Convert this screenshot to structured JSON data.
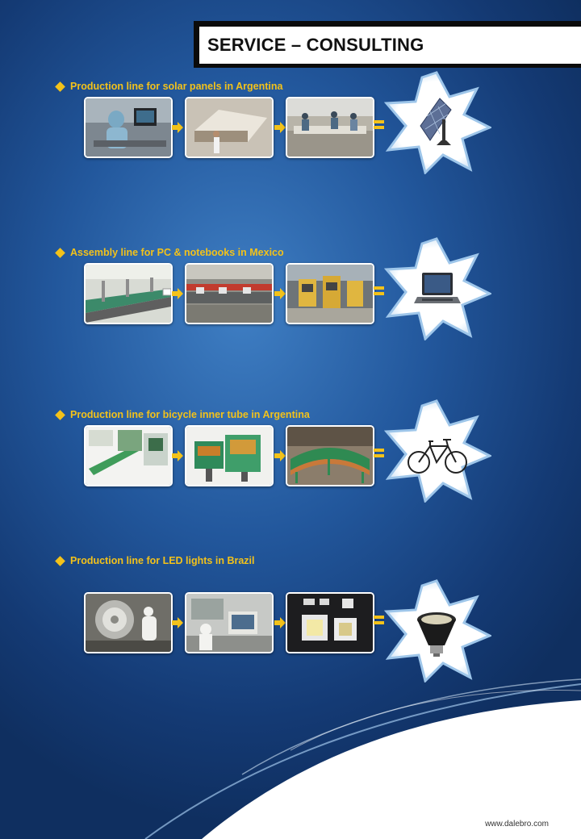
{
  "header": {
    "title": "SERVICE – CONSULTING"
  },
  "sections": [
    {
      "label": "Production line for solar panels in Argentina",
      "result_icon": "solar-panel-icon"
    },
    {
      "label": "Assembly line for PC & notebooks in Mexico",
      "result_icon": "laptop-icon"
    },
    {
      "label": "Production line for bicycle inner tube in Argentina",
      "result_icon": "bicycle-icon"
    },
    {
      "label": "Production line for LED  lights in  Brazil",
      "result_icon": "led-bulb-icon"
    }
  ],
  "footer": {
    "url": "www.dalebro.com"
  },
  "colors": {
    "accent": "#f3c21a",
    "background": "#22579c",
    "header_bg": "#ffffff"
  }
}
